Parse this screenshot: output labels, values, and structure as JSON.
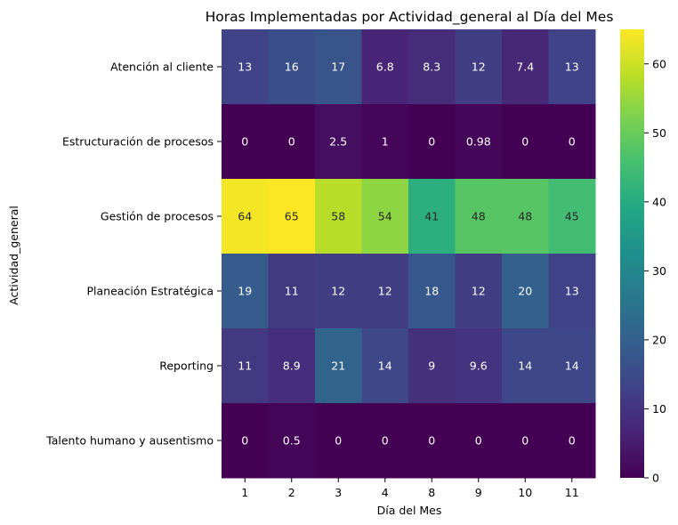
{
  "chart_data": {
    "type": "heatmap",
    "title": "Horas Implementadas por Actividad_general al Día del Mes",
    "xlabel": "Día del Mes",
    "ylabel": "Actividad_general",
    "x_categories": [
      "1",
      "2",
      "3",
      "4",
      "8",
      "9",
      "10",
      "11"
    ],
    "y_categories": [
      "Atención al cliente",
      "Estructuración de procesos",
      "Gestión de procesos",
      "Planeación Estratégica",
      "Reporting",
      "Talento humano y ausentismo"
    ],
    "values": [
      [
        13,
        16,
        17,
        6.8,
        8.3,
        12,
        7.4,
        13
      ],
      [
        0,
        0,
        2.5,
        1,
        0,
        0.98,
        0,
        0
      ],
      [
        64,
        65,
        58,
        54,
        41,
        48,
        48,
        45
      ],
      [
        19,
        11,
        12,
        12,
        18,
        12,
        20,
        13
      ],
      [
        11,
        8.9,
        21,
        14,
        9,
        9.6,
        14,
        14
      ],
      [
        0,
        0.5,
        0,
        0,
        0,
        0,
        0,
        0
      ]
    ],
    "labels": [
      [
        "13",
        "16",
        "17",
        "6.8",
        "8.3",
        "12",
        "7.4",
        "13"
      ],
      [
        "0",
        "0",
        "2.5",
        "1",
        "0",
        "0.98",
        "0",
        "0"
      ],
      [
        "64",
        "65",
        "58",
        "54",
        "41",
        "48",
        "48",
        "45"
      ],
      [
        "19",
        "11",
        "12",
        "12",
        "18",
        "12",
        "20",
        "13"
      ],
      [
        "11",
        "8.9",
        "21",
        "14",
        "9",
        "9.6",
        "14",
        "14"
      ],
      [
        "0",
        "0.5",
        "0",
        "0",
        "0",
        "0",
        "0",
        "0"
      ]
    ],
    "colormap": "viridis",
    "vmin": 0,
    "vmax": 65,
    "colorbar_ticks": [
      "0",
      "10",
      "20",
      "30",
      "40",
      "50",
      "60"
    ],
    "annotation_color_dark_bg": "#ffffff",
    "annotation_color_light_bg": "#262626"
  }
}
